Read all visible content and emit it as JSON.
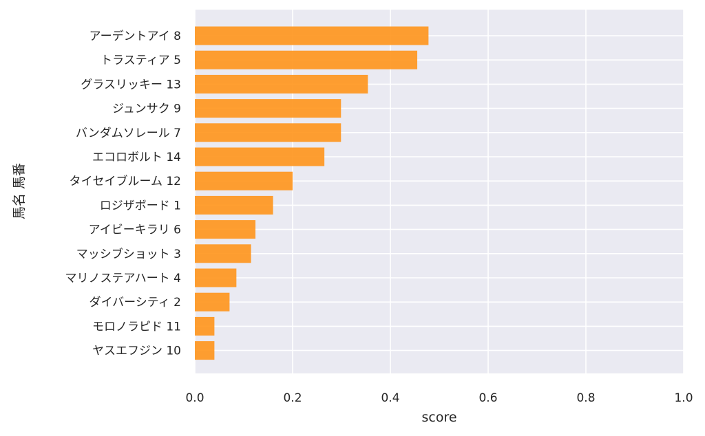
{
  "chart_data": {
    "type": "bar",
    "orientation": "horizontal",
    "title": "",
    "xlabel": "score",
    "ylabel": "馬名 馬番",
    "xlim": [
      0,
      1.0
    ],
    "xticks": [
      "0.0",
      "0.2",
      "0.4",
      "0.6",
      "0.8",
      "1.0"
    ],
    "grid": true,
    "legend": "none",
    "bar_color": "#ff9214",
    "background_color": "#eaeaf2",
    "categories": [
      "アーデントアイ 8",
      "トラスティア 5",
      "グラスリッキー 13",
      "ジュンサク 9",
      "バンダムソレール 7",
      "エコロボルト 14",
      "タイセイブルーム 12",
      "ロジザボード 1",
      "アイビーキラリ 6",
      "マッシブショット 3",
      "マリノステアハート 4",
      "ダイバーシティ 2",
      "モロノラピド 11",
      "ヤスエフジン 10"
    ],
    "values": [
      0.478,
      0.455,
      0.354,
      0.299,
      0.299,
      0.265,
      0.2,
      0.16,
      0.124,
      0.115,
      0.085,
      0.071,
      0.04,
      0.04
    ]
  }
}
